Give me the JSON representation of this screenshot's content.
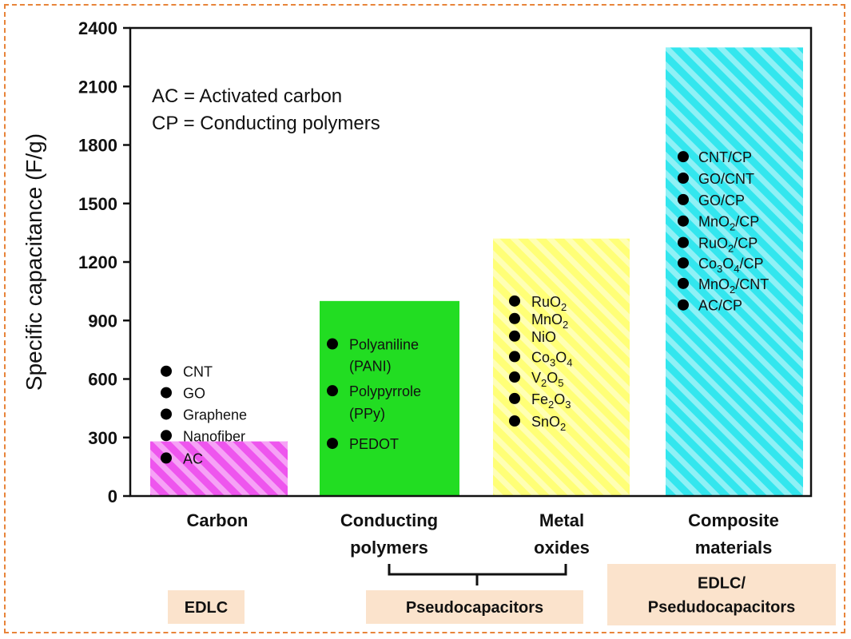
{
  "chart_data": {
    "type": "bar",
    "ylabel": "Specific capacitance (F/g)",
    "ylim": [
      0,
      2400
    ],
    "yticks": [
      0,
      300,
      600,
      900,
      1200,
      1500,
      1800,
      2100,
      2400
    ],
    "categories": [
      "Carbon",
      "Conducting polymers",
      "Metal oxides",
      "Composite materials"
    ],
    "category_lines": [
      [
        "Carbon"
      ],
      [
        "Conducting",
        "polymers"
      ],
      [
        "Metal",
        "oxides"
      ],
      [
        "Composite",
        "materials"
      ]
    ],
    "values": [
      280,
      1000,
      1320,
      2300
    ],
    "colors": [
      "#ee55ee",
      "#22dd22",
      "#ffff77",
      "#33e6ee"
    ],
    "hatched": [
      true,
      false,
      true,
      true
    ],
    "legend": [
      "AC = Activated carbon",
      "CP = Conducting polymers"
    ],
    "materials": [
      [
        {
          "text": "CNT",
          "y": 640
        },
        {
          "text": "GO",
          "y": 530
        },
        {
          "text": "Graphene",
          "y": 420
        },
        {
          "text": "Nanofiber",
          "y": 310
        },
        {
          "text": "AC",
          "y": 195
        }
      ],
      [
        {
          "text": "Polyaniline",
          "y": 780
        },
        {
          "text": "(PANI)",
          "y": 670,
          "nobullet": true
        },
        {
          "text": "Polypyrrole",
          "y": 540
        },
        {
          "text": "(PPy)",
          "y": 425,
          "nobullet": true
        },
        {
          "text": "PEDOT",
          "y": 270
        }
      ],
      [
        {
          "parts": [
            [
              "RuO",
              ""
            ],
            [
              "2",
              "sub"
            ]
          ],
          "y": 1000
        },
        {
          "parts": [
            [
              "MnO",
              ""
            ],
            [
              "2",
              "sub"
            ]
          ],
          "y": 910
        },
        {
          "parts": [
            [
              "NiO",
              ""
            ]
          ],
          "y": 820
        },
        {
          "parts": [
            [
              "Co",
              ""
            ],
            [
              "3",
              "sub"
            ],
            [
              "O",
              ""
            ],
            [
              "4",
              "sub"
            ]
          ],
          "y": 715
        },
        {
          "parts": [
            [
              "V",
              ""
            ],
            [
              "2",
              "sub"
            ],
            [
              "O",
              ""
            ],
            [
              "5",
              "sub"
            ]
          ],
          "y": 610
        },
        {
          "parts": [
            [
              "Fe",
              ""
            ],
            [
              "2",
              "sub"
            ],
            [
              "O",
              ""
            ],
            [
              "3",
              "sub"
            ]
          ],
          "y": 500
        },
        {
          "parts": [
            [
              "SnO",
              ""
            ],
            [
              "2",
              "sub"
            ]
          ],
          "y": 385
        }
      ],
      [
        {
          "parts": [
            [
              "CNT/CP",
              ""
            ]
          ],
          "y": 1740
        },
        {
          "parts": [
            [
              "GO/CNT",
              ""
            ]
          ],
          "y": 1630
        },
        {
          "parts": [
            [
              "GO/CP",
              ""
            ]
          ],
          "y": 1520
        },
        {
          "parts": [
            [
              "MnO",
              ""
            ],
            [
              "2",
              "sub"
            ],
            [
              "/CP",
              ""
            ]
          ],
          "y": 1410
        },
        {
          "parts": [
            [
              "RuO",
              ""
            ],
            [
              "2",
              "sub"
            ],
            [
              "/CP",
              ""
            ]
          ],
          "y": 1300
        },
        {
          "parts": [
            [
              "Co",
              ""
            ],
            [
              "3",
              "sub"
            ],
            [
              "O",
              ""
            ],
            [
              "4",
              "sub"
            ],
            [
              "/CP",
              ""
            ]
          ],
          "y": 1195
        },
        {
          "parts": [
            [
              "MnO",
              ""
            ],
            [
              "2",
              "sub"
            ],
            [
              "/CNT",
              ""
            ]
          ],
          "y": 1090
        },
        {
          "parts": [
            [
              "AC/CP",
              ""
            ]
          ],
          "y": 980
        }
      ]
    ],
    "groups": [
      {
        "label": [
          "EDLC"
        ],
        "bars": [
          0
        ]
      },
      {
        "label": [
          "Pseudocapacitors"
        ],
        "bars": [
          1,
          2
        ]
      },
      {
        "label": [
          "EDLC/",
          "Psedudocapacitors"
        ],
        "bars": [
          3
        ]
      }
    ]
  }
}
